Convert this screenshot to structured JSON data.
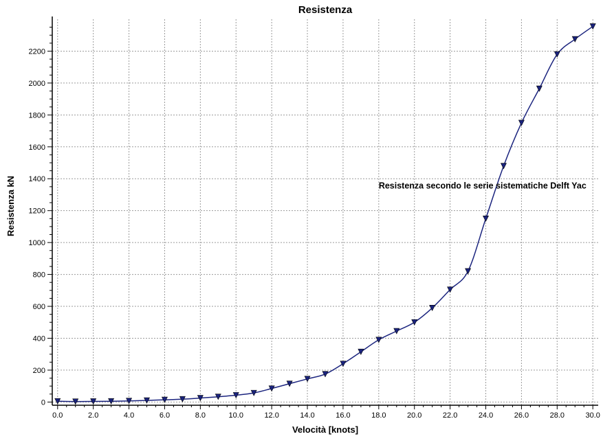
{
  "chart_data": {
    "type": "line",
    "title": "Resistenza",
    "xlabel": "Velocità [knots]",
    "ylabel": "Resistenza kN",
    "xlim": [
      -0.3,
      30.3
    ],
    "ylim": [
      -20,
      2400
    ],
    "x_ticks": [
      0,
      2,
      4,
      6,
      8,
      10,
      12,
      14,
      16,
      18,
      20,
      22,
      24,
      26,
      28,
      30
    ],
    "x_tick_labels": [
      "0.0",
      "2.0",
      "4.0",
      "6.0",
      "8.0",
      "10.0",
      "12.0",
      "14.0",
      "16.0",
      "18.0",
      "20.0",
      "22.0",
      "24.0",
      "26.0",
      "28.0",
      "30.0"
    ],
    "y_ticks": [
      0,
      200,
      400,
      600,
      800,
      1000,
      1200,
      1400,
      1600,
      1800,
      2000,
      2200
    ],
    "y_tick_labels": [
      "0",
      "200",
      "400",
      "600",
      "800",
      "1000",
      "1200",
      "1400",
      "1600",
      "1800",
      "2000",
      "2200"
    ],
    "grid": true,
    "annotation": {
      "text": "Resistenza secondo le serie sistematiche Delft Yac",
      "x": 18.0,
      "y": 1355
    },
    "series": [
      {
        "color": "#1a237e",
        "marker": "triangle-down",
        "x": [
          0,
          1,
          2,
          3,
          4,
          5,
          6,
          7,
          8,
          9,
          10,
          11,
          12,
          13,
          14,
          15,
          16,
          17,
          18,
          19,
          20,
          21,
          22,
          23,
          24,
          25,
          26,
          27,
          28,
          29,
          30
        ],
        "y": [
          5,
          3,
          4,
          5,
          7,
          10,
          14,
          18,
          25,
          33,
          43,
          57,
          85,
          115,
          145,
          175,
          240,
          315,
          390,
          445,
          500,
          590,
          705,
          820,
          1150,
          1480,
          1750,
          1965,
          2180,
          2275,
          2355
        ]
      }
    ]
  }
}
